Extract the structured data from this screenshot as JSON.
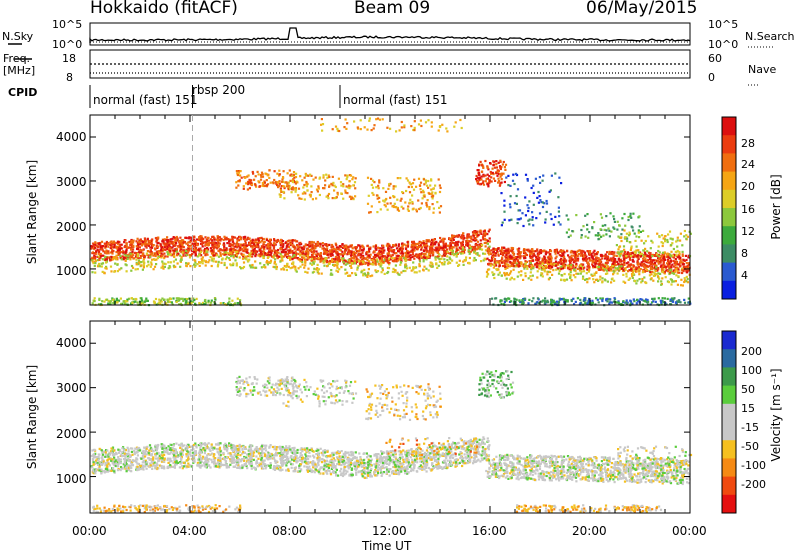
{
  "header": {
    "station": "Hokkaido (fitACF)",
    "beam": "Beam 09",
    "date": "06/May/2015"
  },
  "strip_nsky": {
    "label": "N.Sky",
    "left_top": "10^5",
    "left_bottom": "10^0",
    "right_label": "N.Search",
    "right_top": "10^5",
    "right_bottom": "10^0"
  },
  "strip_freq": {
    "label_line1": "Freq.",
    "label_line2": "[MHz]",
    "left_top": "18",
    "left_bottom": "8",
    "right_label": "Nave",
    "right_top": "60",
    "right_bottom": "0"
  },
  "cpid": {
    "label": "CPID",
    "segments": [
      "normal (fast) 151",
      "rbsp 200",
      "normal (fast) 151"
    ]
  },
  "colors": {
    "power": [
      "#0a1fe0",
      "#2a5ad0",
      "#3c8c64",
      "#3caa3c",
      "#8cc83c",
      "#dccd28",
      "#f5a514",
      "#f06e0f",
      "#eb3c0f",
      "#dc0f0f"
    ],
    "velocity": [
      "#e51010",
      "#f04a10",
      "#f58a14",
      "#f5c020",
      "#c8c8c8",
      "#c8c8c8",
      "#5acd3c",
      "#3c9a4a",
      "#2a6aa0",
      "#1a2ad0"
    ]
  },
  "chart_data": [
    {
      "type": "heatmap",
      "quantity": "power",
      "ylabel": "Slant Range [km]",
      "yticks": [
        1000,
        2000,
        3000,
        4000
      ],
      "ylim": [
        180,
        4500
      ],
      "colorbar": {
        "label": "Power [dB]",
        "ticks": [
          "28",
          "24",
          "20",
          "16",
          "12",
          "8",
          "4"
        ]
      }
    },
    {
      "type": "heatmap",
      "quantity": "velocity",
      "ylabel": "Slant Range [km]",
      "yticks": [
        1000,
        2000,
        3000,
        4000
      ],
      "ylim": [
        180,
        4500
      ],
      "xlabel": "Time UT",
      "xticks": [
        "00:00",
        "04:00",
        "08:00",
        "12:00",
        "16:00",
        "20:00",
        "00:00"
      ],
      "colorbar": {
        "label": "Velocity [m s⁻¹]",
        "ticks": [
          "200",
          "100",
          "50",
          "15",
          "-15",
          "-50",
          "-100",
          "-200"
        ]
      }
    }
  ]
}
